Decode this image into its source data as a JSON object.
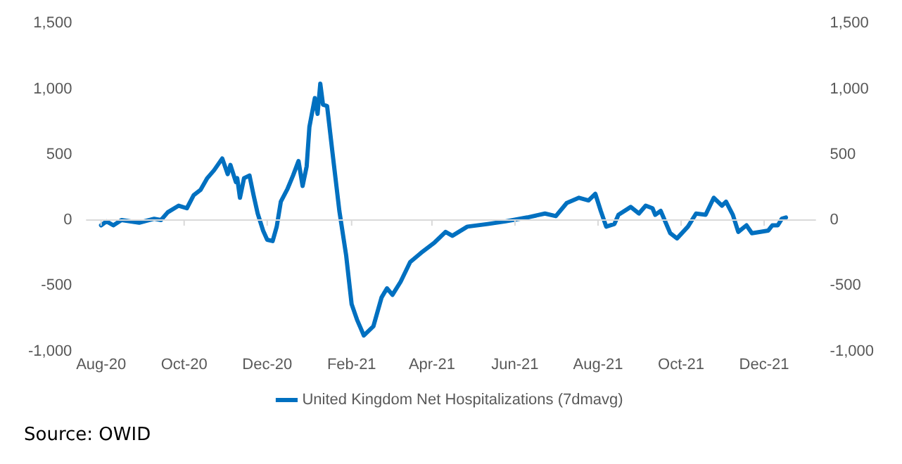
{
  "chart_data": {
    "type": "line",
    "annotations": [
      "Source: OWID"
    ],
    "x": [
      "2020-08-01",
      "2020-08-05",
      "2020-08-10",
      "2020-08-16",
      "2020-08-29",
      "2020-09-09",
      "2020-09-14",
      "2020-09-19",
      "2020-09-27",
      "2020-10-03",
      "2020-10-08",
      "2020-10-13",
      "2020-10-18",
      "2020-10-23",
      "2020-10-29",
      "2020-11-02",
      "2020-11-04",
      "2020-11-08",
      "2020-11-09",
      "2020-11-11",
      "2020-11-14",
      "2020-11-18",
      "2020-11-21",
      "2020-11-24",
      "2020-11-28",
      "2020-12-01",
      "2020-12-05",
      "2020-12-08",
      "2020-12-11",
      "2020-12-16",
      "2020-12-20",
      "2020-12-24",
      "2020-12-27",
      "2020-12-30",
      "2021-01-01",
      "2021-01-05",
      "2021-01-07",
      "2021-01-09",
      "2021-01-11",
      "2021-01-14",
      "2021-01-18",
      "2021-01-23",
      "2021-01-28",
      "2021-02-01",
      "2021-02-05",
      "2021-02-10",
      "2021-02-17",
      "2021-02-23",
      "2021-02-27",
      "2021-03-03",
      "2021-03-09",
      "2021-03-16",
      "2021-03-24",
      "2021-04-03",
      "2021-04-11",
      "2021-04-16",
      "2021-04-27",
      "2021-05-12",
      "2021-05-25",
      "2021-06-10",
      "2021-06-23",
      "2021-07-01",
      "2021-07-09",
      "2021-07-18",
      "2021-07-25",
      "2021-07-30",
      "2021-08-03",
      "2021-08-07",
      "2021-08-13",
      "2021-08-16",
      "2021-08-25",
      "2021-08-31",
      "2021-09-05",
      "2021-09-10",
      "2021-09-12",
      "2021-09-16",
      "2021-09-23",
      "2021-09-28",
      "2021-10-06",
      "2021-10-12",
      "2021-10-19",
      "2021-10-25",
      "2021-10-31",
      "2021-11-03",
      "2021-11-08",
      "2021-11-12",
      "2021-11-18",
      "2021-11-22",
      "2021-12-04",
      "2021-12-07",
      "2021-12-11",
      "2021-12-14",
      "2021-12-17"
    ],
    "series": [
      {
        "name": "United Kingdom Net Hospitalizations (7dmavg)",
        "color": "#0070c0",
        "values": [
          -40,
          -10,
          -40,
          0,
          -20,
          10,
          0,
          60,
          110,
          90,
          190,
          230,
          320,
          380,
          470,
          350,
          420,
          290,
          320,
          170,
          320,
          340,
          190,
          50,
          -80,
          -150,
          -160,
          -50,
          140,
          240,
          340,
          450,
          260,
          410,
          710,
          930,
          810,
          1040,
          880,
          870,
          510,
          70,
          -270,
          -640,
          -760,
          -880,
          -810,
          -590,
          -520,
          -570,
          -470,
          -320,
          -250,
          -170,
          -90,
          -120,
          -50,
          -30,
          -10,
          20,
          50,
          30,
          130,
          170,
          150,
          200,
          70,
          -50,
          -30,
          40,
          100,
          50,
          110,
          90,
          40,
          70,
          -100,
          -140,
          -50,
          50,
          40,
          170,
          110,
          140,
          40,
          -90,
          -40,
          -100,
          -80,
          -40,
          -40,
          10,
          20
        ]
      }
    ],
    "xlim": [
      "2020-07-21",
      "2022-01-08"
    ],
    "xticks": [
      {
        "value": "2020-08-01",
        "label": "Aug-20"
      },
      {
        "value": "2020-10-01",
        "label": "Oct-20"
      },
      {
        "value": "2020-12-01",
        "label": "Dec-20"
      },
      {
        "value": "2021-02-01",
        "label": "Feb-21"
      },
      {
        "value": "2021-04-01",
        "label": "Apr-21"
      },
      {
        "value": "2021-06-01",
        "label": "Jun-21"
      },
      {
        "value": "2021-08-01",
        "label": "Aug-21"
      },
      {
        "value": "2021-10-01",
        "label": "Oct-21"
      },
      {
        "value": "2021-12-01",
        "label": "Dec-21"
      }
    ],
    "ylim": [
      -1000,
      1500
    ],
    "yticks": [
      {
        "value": -1000,
        "label": "-1,000"
      },
      -500,
      0,
      500,
      {
        "value": 1000,
        "label": "1,000"
      },
      {
        "value": 1500,
        "label": "1,500"
      }
    ],
    "y2lim": [
      -1000,
      1500
    ],
    "y2ticks": [
      {
        "value": -1000,
        "label": "-1,000"
      },
      -500,
      0,
      500,
      {
        "value": 1000,
        "label": "1,000"
      },
      {
        "value": 1500,
        "label": "1,500"
      }
    ],
    "ref_lines": [
      {
        "axis": "y",
        "value": 0,
        "color": "#d9d9d9"
      }
    ],
    "legend": "bottom",
    "marker": "none",
    "line_style": "solid"
  }
}
